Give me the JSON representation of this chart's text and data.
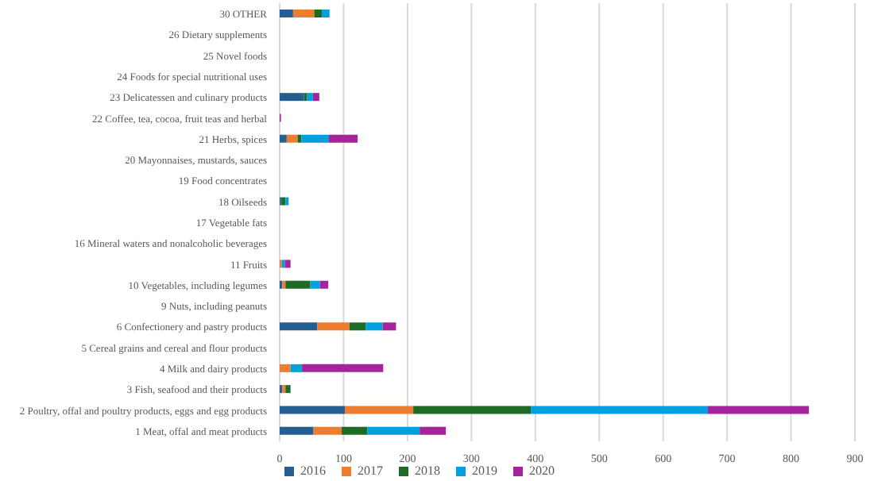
{
  "chart_data": {
    "type": "bar",
    "orientation": "horizontal",
    "stacked": true,
    "categories": [
      "30 OTHER",
      "26 Dietary supplements",
      "25 Novel foods",
      "24 Foods for special nutritional uses",
      "23 Delicatessen and culinary products",
      "22 Coffee, tea, cocoa, fruit teas and herbal",
      "21 Herbs, spices",
      "20 Mayonnaises, mustards, sauces",
      "19 Food concentrates",
      "18 Oilseeds",
      "17 Vegetable fats",
      "16 Mineral waters and nonalcoholic beverages",
      "11 Fruits",
      "10 Vegetables, including legumes",
      "9 Nuts, including peanuts",
      "6 Confectionery and pastry products",
      "5 Cereal grains and cereal and flour products",
      "4 Milk and dairy products",
      "3 Fish, seafood and their products",
      "2 Poultry, offal and poultry products, eggs and egg products",
      "1 Meat, offal and meat products"
    ],
    "series": [
      {
        "name": "2016",
        "color": "#255e91",
        "values": [
          21,
          0,
          0,
          0,
          38,
          0,
          11,
          0,
          0,
          2,
          0,
          0,
          0,
          4,
          0,
          59,
          0,
          0,
          4,
          102,
          53
        ]
      },
      {
        "name": "2017",
        "color": "#ed7d31",
        "values": [
          33,
          0,
          0,
          0,
          0,
          0,
          17,
          0,
          0,
          0,
          0,
          0,
          3,
          5,
          0,
          50,
          0,
          17,
          5,
          107,
          44
        ]
      },
      {
        "name": "2018",
        "color": "#1e6b25",
        "values": [
          12,
          0,
          0,
          0,
          5,
          0,
          6,
          0,
          0,
          7,
          0,
          0,
          0,
          39,
          0,
          26,
          0,
          0,
          8,
          184,
          40
        ]
      },
      {
        "name": "2019",
        "color": "#00a0e0",
        "values": [
          12,
          0,
          0,
          0,
          9,
          0,
          43,
          0,
          0,
          5,
          0,
          0,
          5,
          15,
          0,
          26,
          0,
          18,
          0,
          277,
          82
        ]
      },
      {
        "name": "2020",
        "color": "#a5239b",
        "values": [
          0,
          0,
          0,
          0,
          10,
          2,
          45,
          0,
          0,
          0,
          0,
          0,
          9,
          13,
          0,
          21,
          0,
          127,
          0,
          158,
          41
        ]
      }
    ],
    "xlim": [
      0,
      900
    ],
    "xticks": [
      0,
      100,
      200,
      300,
      400,
      500,
      600,
      700,
      800,
      900
    ],
    "grid": "x",
    "legend": "bottom"
  }
}
